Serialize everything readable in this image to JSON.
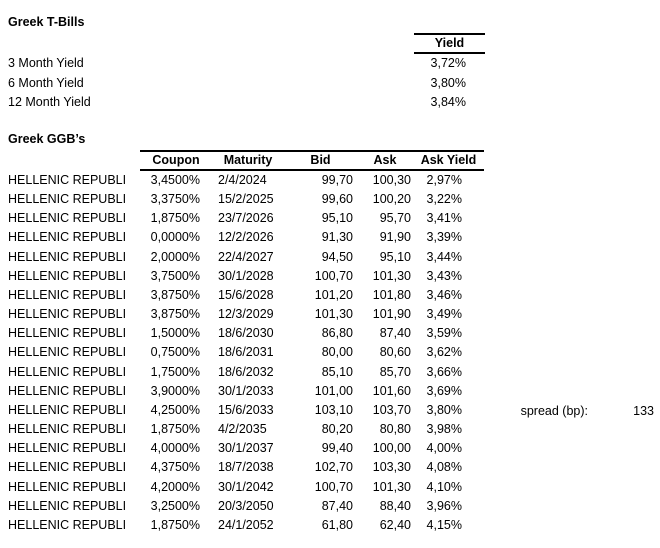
{
  "tbills": {
    "title": "Greek T-Bills",
    "yield_header": "Yield",
    "rows": [
      {
        "label": "3 Month Yield",
        "value": "3,72%"
      },
      {
        "label": "6 Month Yield",
        "value": "3,80%"
      },
      {
        "label": "12 Month Yield",
        "value": "3,84%"
      }
    ]
  },
  "ggbs": {
    "title": "Greek GGB’s",
    "columns": [
      "Coupon",
      "Maturity",
      "Bid",
      "Ask",
      "Ask Yield"
    ],
    "rows": [
      [
        "HELLENIC REPUBLI",
        "3,4500%",
        "2/4/2024",
        "99,70",
        "100,30",
        "2,97%"
      ],
      [
        "HELLENIC REPUBLI",
        "3,3750%",
        "15/2/2025",
        "99,60",
        "100,20",
        "3,22%"
      ],
      [
        "HELLENIC REPUBLI",
        "1,8750%",
        "23/7/2026",
        "95,10",
        "95,70",
        "3,41%"
      ],
      [
        "HELLENIC REPUBLI",
        "0,0000%",
        "12/2/2026",
        "91,30",
        "91,90",
        "3,39%"
      ],
      [
        "HELLENIC REPUBLI",
        "2,0000%",
        "22/4/2027",
        "94,50",
        "95,10",
        "3,44%"
      ],
      [
        "HELLENIC REPUBLI",
        "3,7500%",
        "30/1/2028",
        "100,70",
        "101,30",
        "3,43%"
      ],
      [
        "HELLENIC REPUBLI",
        "3,8750%",
        "15/6/2028",
        "101,20",
        "101,80",
        "3,46%"
      ],
      [
        "HELLENIC REPUBLI",
        "3,8750%",
        "12/3/2029",
        "101,30",
        "101,90",
        "3,49%"
      ],
      [
        "HELLENIC REPUBLI",
        "1,5000%",
        "18/6/2030",
        "86,80",
        "87,40",
        "3,59%"
      ],
      [
        "HELLENIC REPUBLI",
        "0,7500%",
        "18/6/2031",
        "80,00",
        "80,60",
        "3,62%"
      ],
      [
        "HELLENIC REPUBLI",
        "1,7500%",
        "18/6/2032",
        "85,10",
        "85,70",
        "3,66%"
      ],
      [
        "HELLENIC REPUBLI",
        "3,9000%",
        "30/1/2033",
        "101,00",
        "101,60",
        "3,69%"
      ],
      [
        "HELLENIC REPUBLI",
        "4,2500%",
        "15/6/2033",
        "103,10",
        "103,70",
        "3,80%"
      ],
      [
        "HELLENIC REPUBLI",
        "1,8750%",
        "4/2/2035",
        "80,20",
        "80,80",
        "3,98%"
      ],
      [
        "HELLENIC REPUBLI",
        "4,0000%",
        "30/1/2037",
        "99,40",
        "100,00",
        "4,00%"
      ],
      [
        "HELLENIC REPUBLI",
        "4,3750%",
        "18/7/2038",
        "102,70",
        "103,30",
        "4,08%"
      ],
      [
        "HELLENIC REPUBLI",
        "4,2000%",
        "30/1/2042",
        "100,70",
        "101,30",
        "4,10%"
      ],
      [
        "HELLENIC REPUBLI",
        "3,2500%",
        "20/3/2050",
        "87,40",
        "88,40",
        "3,96%"
      ],
      [
        "HELLENIC REPUBLI",
        "1,8750%",
        "24/1/2052",
        "61,80",
        "62,40",
        "4,15%"
      ]
    ]
  },
  "spread": {
    "label": "spread (bp):",
    "value": "133"
  }
}
